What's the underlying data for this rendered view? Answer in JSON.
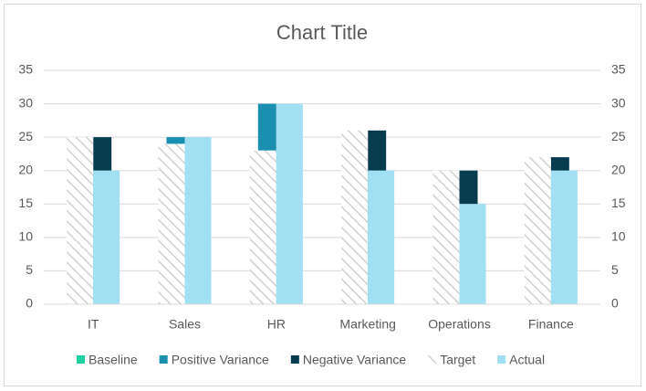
{
  "chart_data": {
    "type": "bar",
    "title": "Chart Title",
    "categories": [
      "IT",
      "Sales",
      "HR",
      "Marketing",
      "Operations",
      "Finance"
    ],
    "series": [
      {
        "name": "Baseline",
        "color": "#21d3a3",
        "axis": "y2",
        "values": [
          20,
          24,
          23,
          20,
          15,
          20
        ]
      },
      {
        "name": "Positive Variance",
        "color": "#1a8fb0",
        "axis": "y2",
        "values": [
          0,
          1,
          7,
          0,
          0,
          0
        ]
      },
      {
        "name": "Negative Variance",
        "color": "#073c4e",
        "axis": "y2",
        "values": [
          5,
          0,
          0,
          6,
          5,
          2
        ]
      },
      {
        "name": "Target",
        "color": "#d0d0d0",
        "pattern": "hatch",
        "values": [
          25,
          24,
          23,
          26,
          20,
          22
        ]
      },
      {
        "name": "Actual",
        "color": "#a1dff3",
        "values": [
          20,
          25,
          30,
          20,
          15,
          20
        ]
      }
    ],
    "ylim": [
      0,
      35
    ],
    "yticks": [
      0,
      5,
      10,
      15,
      20,
      25,
      30,
      35
    ],
    "y2lim": [
      0,
      35
    ],
    "y2ticks": [
      0,
      5,
      10,
      15,
      20,
      25,
      30,
      35
    ],
    "grid": true,
    "legend": "bottom"
  }
}
